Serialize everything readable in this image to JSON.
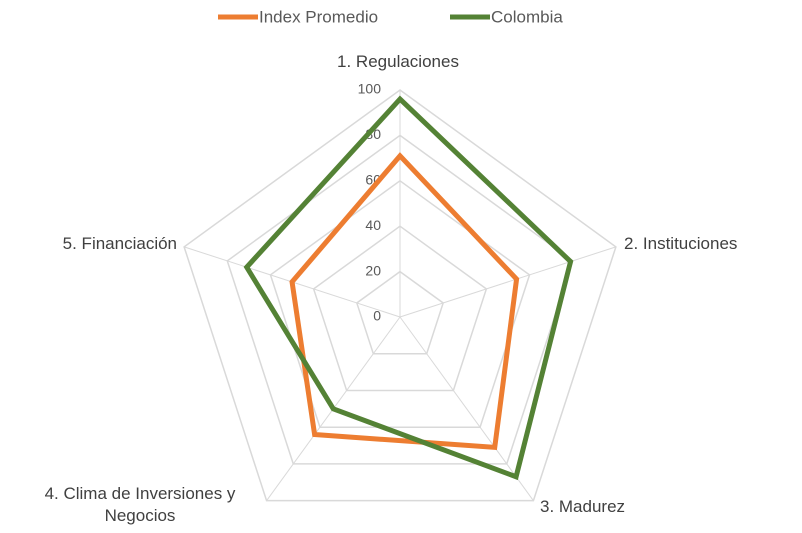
{
  "chart_data": {
    "type": "radar",
    "categories": [
      "1.  Regulaciones",
      "2.  Instituciones",
      "3.  Madurez",
      "4.  Clima de Inversiones y Negocios",
      "5.  Financiación"
    ],
    "series": [
      {
        "name": "Index Promedio",
        "color": "#ed7d31",
        "values": [
          71,
          54,
          71,
          64,
          50
        ]
      },
      {
        "name": "Colombia",
        "color": "#548235",
        "values": [
          96,
          79,
          87,
          50,
          71
        ]
      }
    ],
    "ylim": [
      0,
      100
    ],
    "yticks": [
      0,
      20,
      40,
      60,
      80,
      100
    ],
    "grid": true,
    "legend": "top"
  }
}
